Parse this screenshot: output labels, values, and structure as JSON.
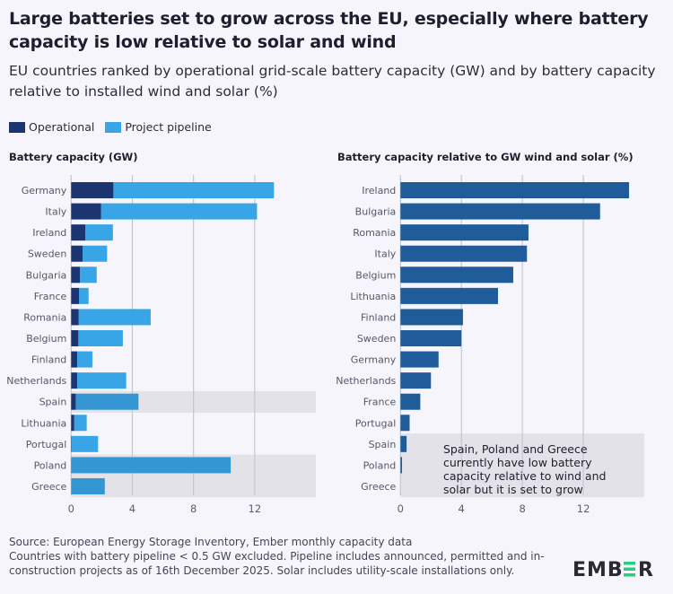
{
  "header": {
    "title": "Large batteries set to grow across the EU, especially where battery capacity is low relative to solar and wind",
    "subtitle": "EU countries ranked by operational grid-scale battery capacity (GW) and by battery capacity relative to installed wind and solar (%)"
  },
  "legend": [
    {
      "label": "Operational",
      "color": "#1c3570"
    },
    {
      "label": "Project pipeline",
      "color": "#38a6e6"
    }
  ],
  "colors": {
    "highlight_band": "#e2e2e8",
    "pipeline_highlighted": "#3497d3",
    "ratio_bar": "#1f5c99",
    "grid": "#c5c7d0",
    "logo_accent": "#1fd37e"
  },
  "chart_data": [
    {
      "type": "bar",
      "orientation": "horizontal",
      "stacked": true,
      "title": "Battery capacity (GW)",
      "categories": [
        "Germany",
        "Italy",
        "Ireland",
        "Sweden",
        "Bulgaria",
        "France",
        "Romania",
        "Belgium",
        "Finland",
        "Netherlands",
        "Spain",
        "Lithuania",
        "Portugal",
        "Poland",
        "Greece"
      ],
      "series": [
        {
          "name": "Operational",
          "values": [
            2.76,
            1.95,
            0.92,
            0.75,
            0.57,
            0.51,
            0.49,
            0.47,
            0.39,
            0.39,
            0.3,
            0.2,
            0.03,
            0.01,
            0
          ]
        },
        {
          "name": "Project pipeline",
          "values": [
            10.5,
            10.2,
            1.81,
            1.6,
            1.1,
            0.63,
            4.71,
            2.91,
            1.0,
            3.21,
            4.1,
            0.82,
            1.73,
            10.42,
            2.2
          ]
        }
      ],
      "highlighted": [
        "Spain",
        "Poland",
        "Greece"
      ],
      "xticks": [
        0,
        4,
        8,
        12
      ],
      "xlim": [
        0,
        16
      ],
      "grid": true
    },
    {
      "type": "bar",
      "orientation": "horizontal",
      "title": "Battery capacity relative to GW wind and solar (%)",
      "categories": [
        "Ireland",
        "Bulgaria",
        "Romania",
        "Italy",
        "Belgium",
        "Lithuania",
        "Finland",
        "Sweden",
        "Germany",
        "Netherlands",
        "France",
        "Portugal",
        "Spain",
        "Poland",
        "Greece"
      ],
      "values": [
        15.0,
        13.1,
        8.4,
        8.3,
        7.4,
        6.4,
        4.1,
        4.0,
        2.5,
        2.0,
        1.3,
        0.6,
        0.4,
        0.1,
        0
      ],
      "highlighted": [
        "Spain",
        "Poland",
        "Greece"
      ],
      "annotation": "Spain, Poland and Greece currently have low battery capacity relative to wind and solar but it is set to grow",
      "xticks": [
        0,
        4,
        8,
        12
      ],
      "xlim": [
        0,
        16
      ],
      "grid": true
    }
  ],
  "footer": {
    "source": "Source: European Energy Storage Inventory, Ember monthly capacity data",
    "note": "Countries with battery pipeline < 0.5 GW excluded. Pipeline includes announced, permitted and in-construction projects as of 16th December 2025. Solar includes utility-scale installations only."
  },
  "logo": {
    "text": "EMBER"
  }
}
